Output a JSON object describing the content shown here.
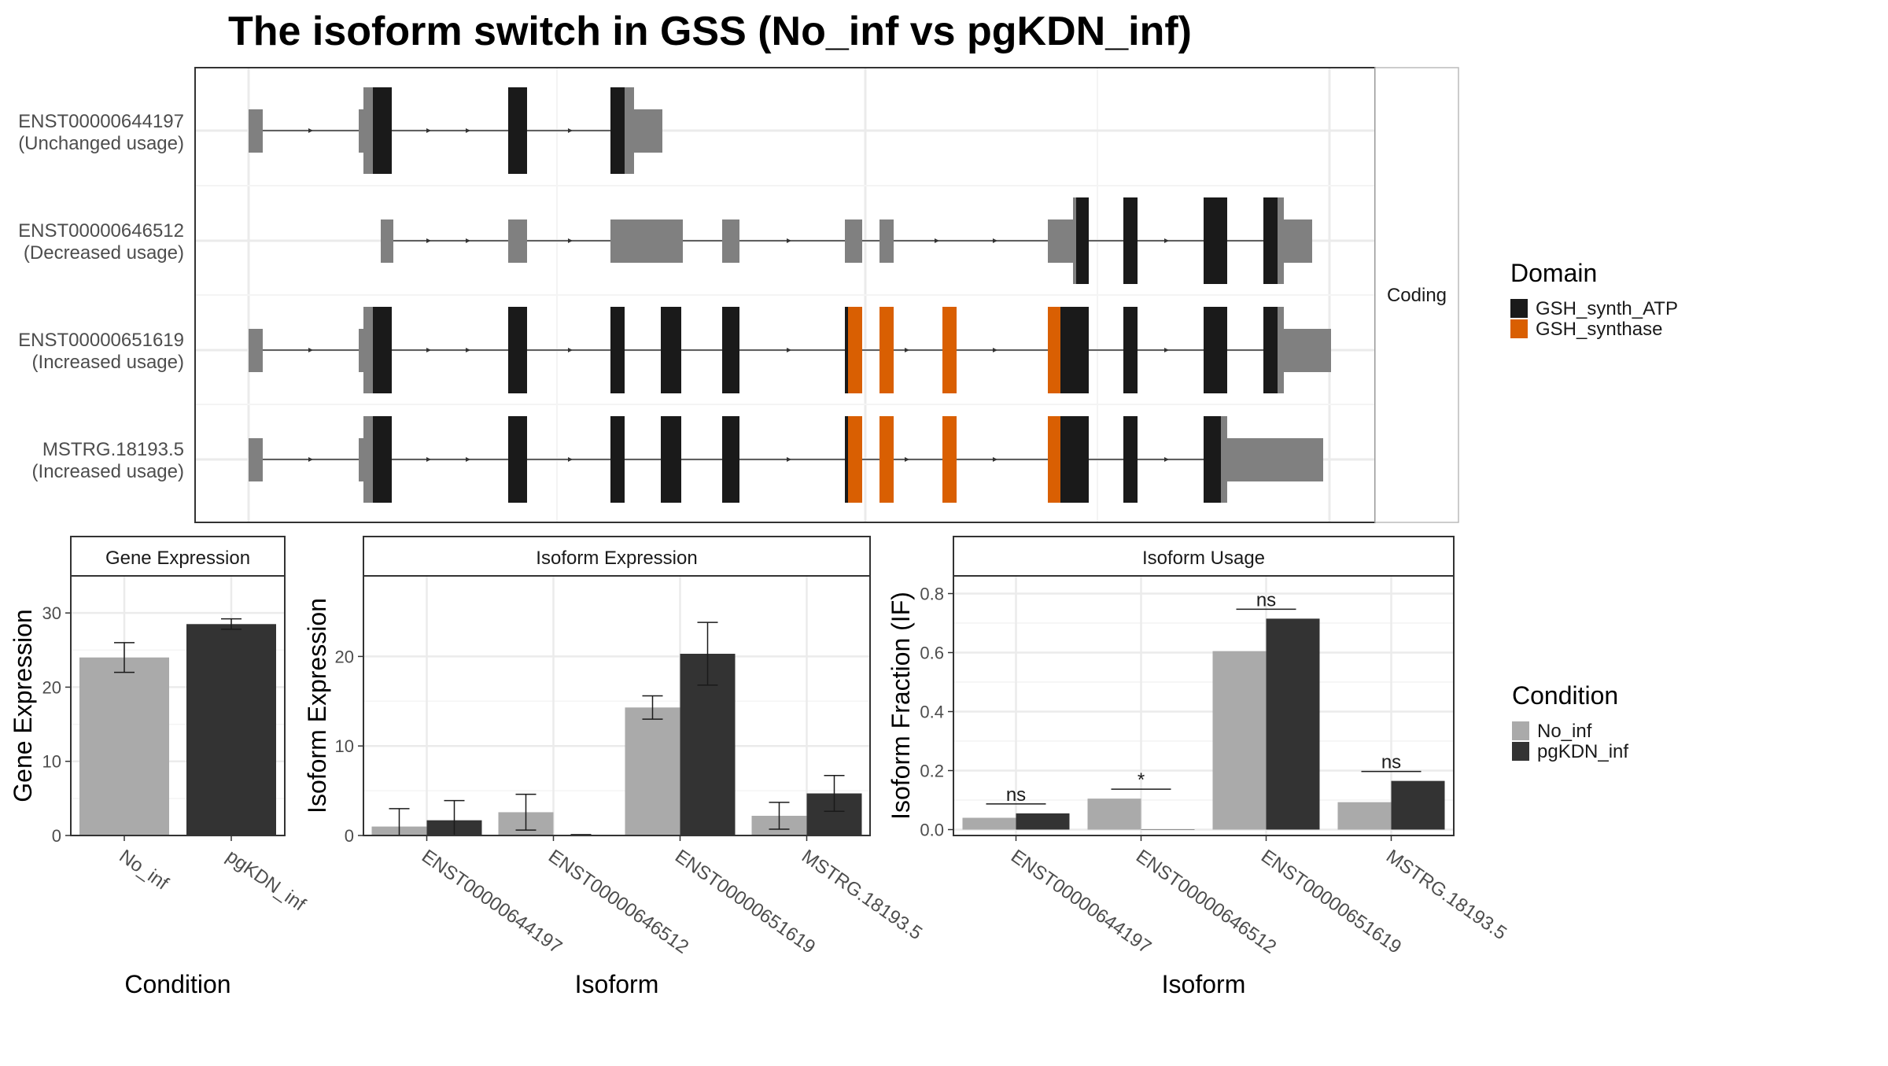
{
  "title": "The isoform switch in GSS (No_inf vs pgKDN_inf)",
  "structure": {
    "strip": "Coding",
    "transcripts": [
      {
        "id": "ENST00000644197",
        "usage": "(Unchanged usage)"
      },
      {
        "id": "ENST00000646512",
        "usage": "(Decreased usage)"
      },
      {
        "id": "ENST00000651619",
        "usage": "(Increased usage)"
      },
      {
        "id": "MSTRG.18193.5",
        "usage": "(Increased usage)"
      }
    ]
  },
  "legend_domain": {
    "title": "Domain",
    "items": [
      {
        "label": "GSH_synth_ATP",
        "color": "#1a1a1a"
      },
      {
        "label": "GSH_synthase",
        "color": "#d95f02"
      }
    ]
  },
  "legend_condition": {
    "title": "Condition",
    "items": [
      {
        "label": "No_inf",
        "color": "#aaaaaa"
      },
      {
        "label": "pgKDN_inf",
        "color": "#333333"
      }
    ]
  },
  "chart_data": [
    {
      "type": "bar",
      "title": "Gene Expression",
      "xlabel": "Condition",
      "ylabel": "Gene Expression",
      "ylim": [
        0,
        35
      ],
      "yticks": [
        0,
        10,
        20,
        30
      ],
      "categories": [
        "No_inf",
        "pgKDN_inf"
      ],
      "values": [
        24,
        28.5
      ],
      "errors": [
        [
          22,
          26
        ],
        [
          27.8,
          29.2
        ]
      ]
    },
    {
      "type": "bar",
      "title": "Isoform Expression",
      "xlabel": "Isoform",
      "ylabel": "Isoform Expression",
      "ylim": [
        0,
        29
      ],
      "yticks": [
        0,
        10,
        20
      ],
      "categories": [
        "ENST00000644197",
        "ENST00000646512",
        "ENST00000651619",
        "MSTRG.18193.5"
      ],
      "series": [
        {
          "name": "No_inf",
          "values": [
            1.0,
            2.6,
            14.3,
            2.2
          ],
          "errors": [
            [
              0,
              3.0
            ],
            [
              0.6,
              4.6
            ],
            [
              13.0,
              15.6
            ],
            [
              0.7,
              3.7
            ]
          ]
        },
        {
          "name": "pgKDN_inf",
          "values": [
            1.7,
            0.05,
            20.3,
            4.7
          ],
          "errors": [
            [
              0,
              3.9
            ],
            [
              0,
              0.1
            ],
            [
              16.8,
              23.8
            ],
            [
              2.7,
              6.7
            ]
          ]
        }
      ]
    },
    {
      "type": "bar",
      "title": "Isoform Usage",
      "xlabel": "Isoform",
      "ylabel": "Isoform Fraction (IF)",
      "ylim": [
        -0.02,
        0.86
      ],
      "yticks": [
        0.0,
        0.2,
        0.4,
        0.6,
        0.8
      ],
      "categories": [
        "ENST00000644197",
        "ENST00000646512",
        "ENST00000651619",
        "MSTRG.18193.5"
      ],
      "series": [
        {
          "name": "No_inf",
          "values": [
            0.04,
            0.105,
            0.605,
            0.093
          ]
        },
        {
          "name": "pgKDN_inf",
          "values": [
            0.055,
            0.0,
            0.715,
            0.165
          ]
        }
      ],
      "significance": [
        "ns",
        "*",
        "ns",
        "ns"
      ]
    }
  ]
}
